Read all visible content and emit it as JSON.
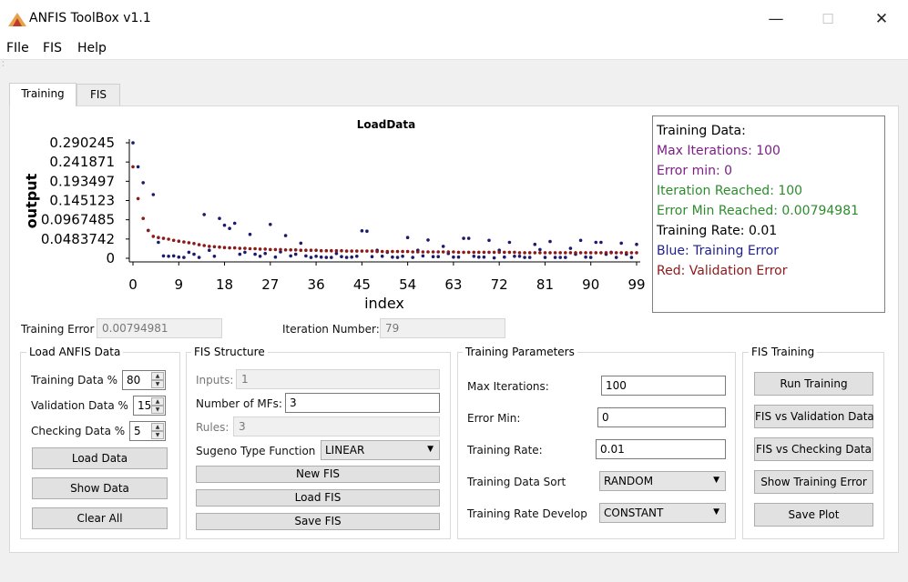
{
  "window": {
    "title": "ANFIS ToolBox v1.1",
    "controls": {
      "minimize": "—",
      "maximize": "☐",
      "close": "✕"
    }
  },
  "menu": [
    "FIle",
    "FIS",
    "Help"
  ],
  "tabs": [
    "Training",
    "FIS"
  ],
  "chart_data": {
    "type": "scatter",
    "title": "LoadData",
    "xlabel": "index",
    "ylabel": "output",
    "xlim": [
      0,
      99
    ],
    "ylim": [
      0,
      0.290245
    ],
    "x_ticks": [
      "0",
      "9",
      "18",
      "27",
      "36",
      "45",
      "54",
      "63",
      "72",
      "81",
      "90",
      "99"
    ],
    "y_ticks": [
      "0.290245",
      "0.241871",
      "0.193497",
      "0.145123",
      "0.0967485",
      "0.0483742",
      "0"
    ],
    "series": [
      {
        "color": "#1a1a6e",
        "x": [
          0,
          1,
          2,
          3,
          4,
          5,
          6,
          7,
          8,
          9,
          10,
          11,
          12,
          13,
          14,
          15,
          16,
          17,
          18,
          19,
          20,
          21,
          22,
          23,
          24,
          25,
          26,
          27,
          28,
          29,
          30,
          31,
          32,
          33,
          34,
          35,
          36,
          37,
          38,
          39,
          40,
          41,
          42,
          43,
          44,
          45,
          46,
          47,
          48,
          49,
          50,
          51,
          52,
          53,
          54,
          55,
          56,
          57,
          58,
          59,
          60,
          61,
          62,
          63,
          64,
          65,
          66,
          67,
          68,
          69,
          70,
          71,
          72,
          73,
          74,
          75,
          76,
          77,
          78,
          79,
          80,
          81,
          82,
          83,
          84,
          85,
          86,
          87,
          88,
          89,
          90,
          91,
          92,
          93,
          94,
          95,
          96,
          97,
          98,
          99
        ],
        "values": [
          0.29,
          0.23,
          0.19,
          0.07,
          0.16,
          0.04,
          0.006,
          0.005,
          0.006,
          0.003,
          0.002,
          0.015,
          0.01,
          0.002,
          0.11,
          0.02,
          0.005,
          0.1,
          0.083,
          0.075,
          0.088,
          0.01,
          0.015,
          0.06,
          0.01,
          0.005,
          0.012,
          0.085,
          0.003,
          0.016,
          0.057,
          0.006,
          0.01,
          0.038,
          0.006,
          0.002,
          0.005,
          0.003,
          0.002,
          0.002,
          0.012,
          0.004,
          0.002,
          0.003,
          0.005,
          0.069,
          0.068,
          0.004,
          0.02,
          0.005,
          0.015,
          0.003,
          0.002,
          0.005,
          0.052,
          0.002,
          0.02,
          0.006,
          0.046,
          0.004,
          0.004,
          0.03,
          0.012,
          0.003,
          0.003,
          0.05,
          0.05,
          0.005,
          0.003,
          0.003,
          0.045,
          0.001,
          0.02,
          0.003,
          0.04,
          0.005,
          0.005,
          0.002,
          0.002,
          0.035,
          0.022,
          0.002,
          0.042,
          0.002,
          0.002,
          0.002,
          0.025,
          0.01,
          0.045,
          0.003,
          0.002,
          0.04,
          0.04,
          0.01,
          0.015,
          0.002,
          0.038,
          0.01,
          0.002,
          0.035
        ]
      },
      {
        "color": "#8b1a1a",
        "x": [
          0,
          1,
          2,
          3,
          4,
          5,
          6,
          7,
          8,
          9,
          10,
          11,
          12,
          13,
          14,
          15,
          16,
          17,
          18,
          19,
          20,
          21,
          22,
          23,
          24,
          25,
          26,
          27,
          28,
          29,
          30,
          31,
          32,
          33,
          34,
          35,
          36,
          37,
          38,
          39,
          40,
          41,
          42,
          43,
          44,
          45,
          46,
          47,
          48,
          49,
          50,
          51,
          52,
          53,
          54,
          55,
          56,
          57,
          58,
          59,
          60,
          61,
          62,
          63,
          64,
          65,
          66,
          67,
          68,
          69,
          70,
          71,
          72,
          73,
          74,
          75,
          76,
          77,
          78,
          79,
          80,
          81,
          82,
          83,
          84,
          85,
          86,
          87,
          88,
          89,
          90,
          91,
          92,
          93,
          94,
          95,
          96,
          97,
          98,
          99
        ],
        "values": [
          0.23,
          0.15,
          0.1,
          0.07,
          0.055,
          0.052,
          0.05,
          0.048,
          0.045,
          0.043,
          0.041,
          0.039,
          0.037,
          0.034,
          0.032,
          0.03,
          0.029,
          0.028,
          0.027,
          0.026,
          0.026,
          0.025,
          0.025,
          0.024,
          0.024,
          0.023,
          0.023,
          0.022,
          0.022,
          0.022,
          0.021,
          0.021,
          0.021,
          0.02,
          0.02,
          0.02,
          0.02,
          0.019,
          0.019,
          0.019,
          0.019,
          0.019,
          0.018,
          0.018,
          0.018,
          0.018,
          0.018,
          0.018,
          0.017,
          0.017,
          0.017,
          0.017,
          0.017,
          0.017,
          0.017,
          0.016,
          0.016,
          0.016,
          0.016,
          0.016,
          0.016,
          0.016,
          0.016,
          0.016,
          0.015,
          0.015,
          0.015,
          0.015,
          0.015,
          0.015,
          0.015,
          0.015,
          0.015,
          0.015,
          0.015,
          0.015,
          0.014,
          0.014,
          0.014,
          0.014,
          0.014,
          0.014,
          0.014,
          0.014,
          0.014,
          0.014,
          0.014,
          0.014,
          0.014,
          0.014,
          0.014,
          0.014,
          0.014,
          0.014,
          0.014,
          0.014,
          0.014,
          0.014,
          0.014,
          0.014
        ]
      }
    ]
  },
  "training_info": {
    "heading": "Training Data:",
    "max_iterations": "Max Iterations: 100",
    "error_min": "Error min: 0",
    "iteration_reached": "Iteration Reached: 100",
    "error_min_reached": "Error Min Reached: 0.00794981",
    "training_rate": "Training Rate: 0.01",
    "blue_legend": "Blue: Training Error",
    "red_legend": "Red: Validation Error",
    "colors": {
      "purple": "#7b1f86",
      "green": "#2e8b2e",
      "blue": "#1f1f8c",
      "red": "#8b1a1a"
    }
  },
  "status": {
    "training_error_label": "Training Error",
    "training_error_value": "0.00794981",
    "iteration_number_label": "Iteration Number:",
    "iteration_number_value": "79"
  },
  "load_group": {
    "title": "Load ANFIS Data",
    "training_label": "Training Data %",
    "training_value": "80",
    "validation_label": "Validation  Data %",
    "validation_value": "15",
    "checking_label": "Checking  Data %",
    "checking_value": "5",
    "load_button": "Load Data",
    "show_button": "Show Data",
    "clear_button": "Clear All"
  },
  "fis_structure": {
    "title": "FIS Structure",
    "inputs_label": "Inputs:",
    "inputs_value": "1",
    "mfs_label": "Number of MFs:",
    "mfs_value": "3",
    "rules_label": "Rules:",
    "rules_value": "3",
    "sugeno_label": "Sugeno Type Function",
    "sugeno_value": "LINEAR",
    "new_button": "New FIS",
    "load_button": "Load FIS",
    "save_button": "Save FIS"
  },
  "training_params": {
    "title": "Training Parameters",
    "max_iter_label": "Max Iterations:",
    "max_iter_value": "100",
    "error_min_label": "Error Min:",
    "error_min_value": "0",
    "rate_label": "Training Rate:",
    "rate_value": "0.01",
    "sort_label": "Training Data Sort",
    "sort_value": "RANDOM",
    "develop_label": "Training Rate Develop",
    "develop_value": "CONSTANT"
  },
  "fis_training": {
    "title": "FIS Training",
    "run_button": "Run Training",
    "vs_validation_button": "FIS vs Validation Data",
    "vs_checking_button": "FIS vs Checking Data",
    "show_error_button": "Show Training Error",
    "save_plot_button": "Save Plot"
  }
}
